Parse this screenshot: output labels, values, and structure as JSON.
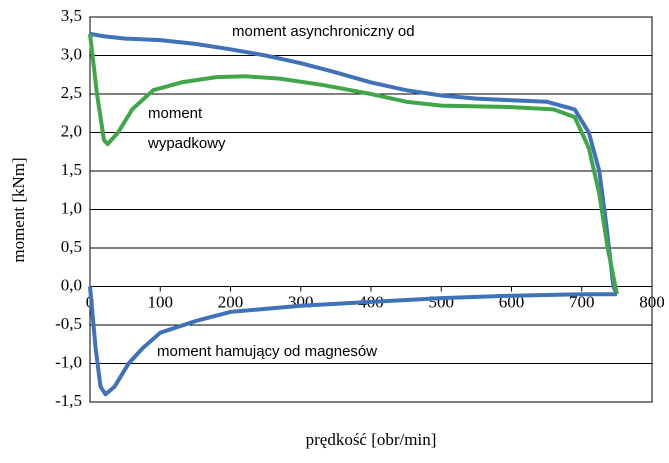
{
  "chart_data": {
    "type": "line",
    "x_label": "prędkość [obr/min]",
    "y_label": "moment [kNm]",
    "xlim": [
      0,
      800
    ],
    "xticks": [
      0,
      100,
      200,
      300,
      400,
      500,
      600,
      700,
      800
    ],
    "ylim": [
      -1.5,
      3.5
    ],
    "yticks": [
      {
        "value": 3.5,
        "label": "3,5"
      },
      {
        "value": 3.0,
        "label": "3,0"
      },
      {
        "value": 2.5,
        "label": "2,5"
      },
      {
        "value": 2.0,
        "label": "2,0"
      },
      {
        "value": 1.5,
        "label": "1,5"
      },
      {
        "value": 1.0,
        "label": "1,0"
      },
      {
        "value": 0.5,
        "label": "0,5"
      },
      {
        "value": 0.0,
        "label": "0,0"
      },
      {
        "value": -0.5,
        "label": "-0,5"
      },
      {
        "value": -1.0,
        "label": "-1,0"
      },
      {
        "value": -1.5,
        "label": "-1,5"
      }
    ],
    "grid": true,
    "series": [
      {
        "color": "#3f72b8",
        "x": [
          0,
          20,
          50,
          100,
          150,
          200,
          250,
          300,
          350,
          400,
          450,
          500,
          550,
          600,
          650,
          690,
          710,
          725,
          735,
          745,
          750
        ],
        "values": [
          3.28,
          3.25,
          3.22,
          3.2,
          3.15,
          3.08,
          3.0,
          2.9,
          2.78,
          2.65,
          2.55,
          2.48,
          2.44,
          2.42,
          2.4,
          2.3,
          2.0,
          1.5,
          0.8,
          0.0,
          -0.1
        ]
      },
      {
        "color": "#3fa74a",
        "x": [
          0,
          10,
          20,
          25,
          40,
          60,
          90,
          130,
          180,
          220,
          270,
          330,
          400,
          450,
          500,
          600,
          660,
          690,
          710,
          725,
          737,
          750
        ],
        "values": [
          3.28,
          2.5,
          1.9,
          1.85,
          2.0,
          2.3,
          2.55,
          2.65,
          2.72,
          2.73,
          2.7,
          2.62,
          2.5,
          2.4,
          2.35,
          2.33,
          2.3,
          2.2,
          1.8,
          1.2,
          0.5,
          -0.1
        ]
      },
      {
        "color": "#3f72b8",
        "x": [
          0,
          8,
          15,
          22,
          35,
          55,
          75,
          100,
          150,
          200,
          300,
          400,
          500,
          600,
          700,
          750
        ],
        "values": [
          0,
          -0.8,
          -1.3,
          -1.4,
          -1.3,
          -1.0,
          -0.8,
          -0.6,
          -0.45,
          -0.33,
          -0.25,
          -0.2,
          -0.15,
          -0.12,
          -0.1,
          -0.1
        ]
      }
    ],
    "annotations": [
      "moment asynchroniczny od",
      "moment",
      "wypadkowy",
      "moment hamujący od magnesów"
    ]
  }
}
